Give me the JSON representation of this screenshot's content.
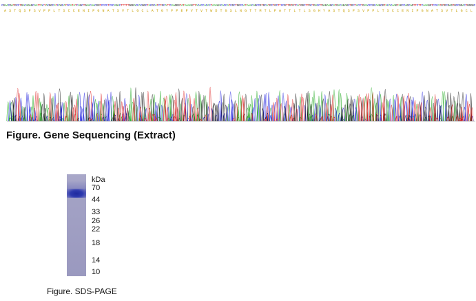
{
  "sequencing": {
    "caption": "Figure. Gene Sequencing (Extract)",
    "trace_colors": {
      "A": "#22aa22",
      "C": "#2222dd",
      "G": "#222222",
      "T": "#dd2222"
    },
    "residue_color": "#c8a000"
  },
  "sds_page": {
    "caption": "Figure. SDS-PAGE",
    "unit_label": "kDa",
    "markers": [
      "70",
      "44",
      "33",
      "26",
      "22",
      "18",
      "14",
      "10"
    ]
  }
}
